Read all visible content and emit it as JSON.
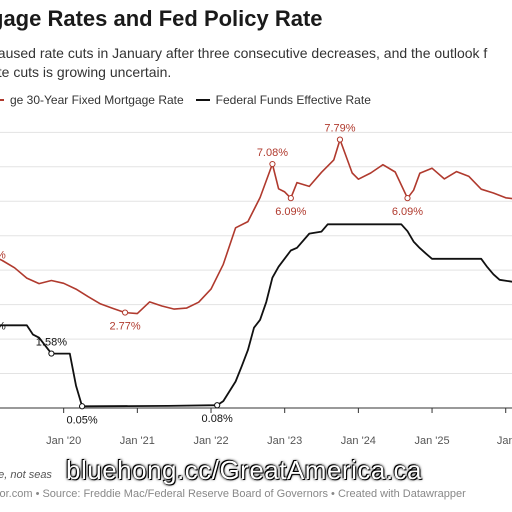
{
  "header": {
    "title": "gage Rates and Fed Policy Rate",
    "subtitle_line1": "paused rate cuts in January after three consecutive decreases, and the outlook f",
    "subtitle_line2": "ate cuts is growing uncertain."
  },
  "legend": [
    {
      "label": "ge 30-Year Fixed Mortgage Rate",
      "color": "#b03a2e"
    },
    {
      "label": "Federal Funds Effective Rate",
      "color": "#111111"
    }
  ],
  "chart_data": {
    "type": "line",
    "x_ticks": [
      "Jan '20",
      "Jan '21",
      "Jan '22",
      "Jan '23",
      "Jan '24",
      "Jan '25",
      "Jan"
    ],
    "xlim": [
      "2019-01",
      "2026-03"
    ],
    "ylim": [
      0,
      8.3
    ],
    "grid": true,
    "series": [
      {
        "name": "ge 30-Year Fixed Mortgage Rate",
        "color": "#b03a2e",
        "points": [
          [
            "2019-01",
            4.45
          ],
          [
            "2019-03",
            4.28
          ],
          [
            "2019-05",
            4.07
          ],
          [
            "2019-07",
            3.77
          ],
          [
            "2019-09",
            3.61
          ],
          [
            "2019-11",
            3.7
          ],
          [
            "2020-01",
            3.62
          ],
          [
            "2020-03",
            3.45
          ],
          [
            "2020-05",
            3.23
          ],
          [
            "2020-07",
            3.02
          ],
          [
            "2020-09",
            2.89
          ],
          [
            "2020-11",
            2.77
          ],
          [
            "2021-01",
            2.74
          ],
          [
            "2021-03",
            3.08
          ],
          [
            "2021-05",
            2.96
          ],
          [
            "2021-07",
            2.87
          ],
          [
            "2021-09",
            2.9
          ],
          [
            "2021-11",
            3.07
          ],
          [
            "2022-01",
            3.45
          ],
          [
            "2022-03",
            4.17
          ],
          [
            "2022-05",
            5.23
          ],
          [
            "2022-07",
            5.41
          ],
          [
            "2022-09",
            6.11
          ],
          [
            "2022-11",
            7.08
          ],
          [
            "2022-12",
            6.36
          ],
          [
            "2023-01",
            6.27
          ],
          [
            "2023-02",
            6.09
          ],
          [
            "2023-03",
            6.54
          ],
          [
            "2023-05",
            6.43
          ],
          [
            "2023-07",
            6.84
          ],
          [
            "2023-09",
            7.2
          ],
          [
            "2023-10",
            7.79
          ],
          [
            "2023-12",
            6.82
          ],
          [
            "2024-01",
            6.64
          ],
          [
            "2024-03",
            6.82
          ],
          [
            "2024-05",
            7.06
          ],
          [
            "2024-07",
            6.85
          ],
          [
            "2024-09",
            6.09
          ],
          [
            "2024-10",
            6.32
          ],
          [
            "2024-11",
            6.81
          ],
          [
            "2025-01",
            6.96
          ],
          [
            "2025-03",
            6.65
          ],
          [
            "2025-05",
            6.86
          ],
          [
            "2025-07",
            6.72
          ],
          [
            "2025-09",
            6.35
          ],
          [
            "2025-11",
            6.24
          ],
          [
            "2026-01",
            6.1
          ],
          [
            "2026-03",
            6.06
          ]
        ]
      },
      {
        "name": "Federal Funds Effective Rate",
        "color": "#111111",
        "points": [
          [
            "2019-01",
            2.4
          ],
          [
            "2019-07",
            2.4
          ],
          [
            "2019-08",
            2.13
          ],
          [
            "2019-09",
            2.04
          ],
          [
            "2019-11",
            1.58
          ],
          [
            "2020-02",
            1.58
          ],
          [
            "2020-03",
            0.65
          ],
          [
            "2020-04",
            0.05
          ],
          [
            "2021-06",
            0.06
          ],
          [
            "2022-02",
            0.08
          ],
          [
            "2022-03",
            0.2
          ],
          [
            "2022-05",
            0.77
          ],
          [
            "2022-06",
            1.21
          ],
          [
            "2022-07",
            1.68
          ],
          [
            "2022-08",
            2.33
          ],
          [
            "2022-09",
            2.56
          ],
          [
            "2022-10",
            3.08
          ],
          [
            "2022-11",
            3.78
          ],
          [
            "2022-12",
            4.1
          ],
          [
            "2023-02",
            4.57
          ],
          [
            "2023-03",
            4.65
          ],
          [
            "2023-05",
            5.06
          ],
          [
            "2023-07",
            5.12
          ],
          [
            "2023-08",
            5.33
          ],
          [
            "2024-08",
            5.33
          ],
          [
            "2024-09",
            5.13
          ],
          [
            "2024-10",
            4.83
          ],
          [
            "2024-11",
            4.64
          ],
          [
            "2024-12",
            4.48
          ],
          [
            "2025-01",
            4.33
          ],
          [
            "2025-09",
            4.33
          ],
          [
            "2025-10",
            4.09
          ],
          [
            "2025-11",
            3.88
          ],
          [
            "2025-12",
            3.72
          ],
          [
            "2026-03",
            3.64
          ]
        ]
      }
    ],
    "annotations": [
      {
        "text": "%",
        "x": "2019-01",
        "y": 4.45,
        "series": 0,
        "pos": "left"
      },
      {
        "text": "2.77%",
        "x": "2020-11",
        "y": 2.77,
        "series": 0,
        "pos": "below"
      },
      {
        "text": "7.08%",
        "x": "2022-11",
        "y": 7.08,
        "series": 0,
        "pos": "above"
      },
      {
        "text": "6.09%",
        "x": "2023-02",
        "y": 6.09,
        "series": 0,
        "pos": "below"
      },
      {
        "text": "7.79%",
        "x": "2023-10",
        "y": 7.79,
        "series": 0,
        "pos": "above"
      },
      {
        "text": "6.09%",
        "x": "2024-09",
        "y": 6.09,
        "series": 0,
        "pos": "below"
      },
      {
        "text": "%",
        "x": "2019-01",
        "y": 2.4,
        "series": 1,
        "pos": "left"
      },
      {
        "text": "1.58%",
        "x": "2019-11",
        "y": 1.58,
        "series": 1,
        "pos": "above"
      },
      {
        "text": "0.05%",
        "x": "2020-04",
        "y": 0.05,
        "series": 1,
        "pos": "below"
      },
      {
        "text": "0.08%",
        "x": "2022-02",
        "y": 0.08,
        "series": 1,
        "pos": "below"
      }
    ]
  },
  "footer": {
    "note": "ge, not seas",
    "source": "ltor.com • Source: Freddie Mac/Federal Reserve Board of Governors • Created with Datawrapper",
    "watermark": "bluehong.cc/GreatAmerica.ca"
  }
}
